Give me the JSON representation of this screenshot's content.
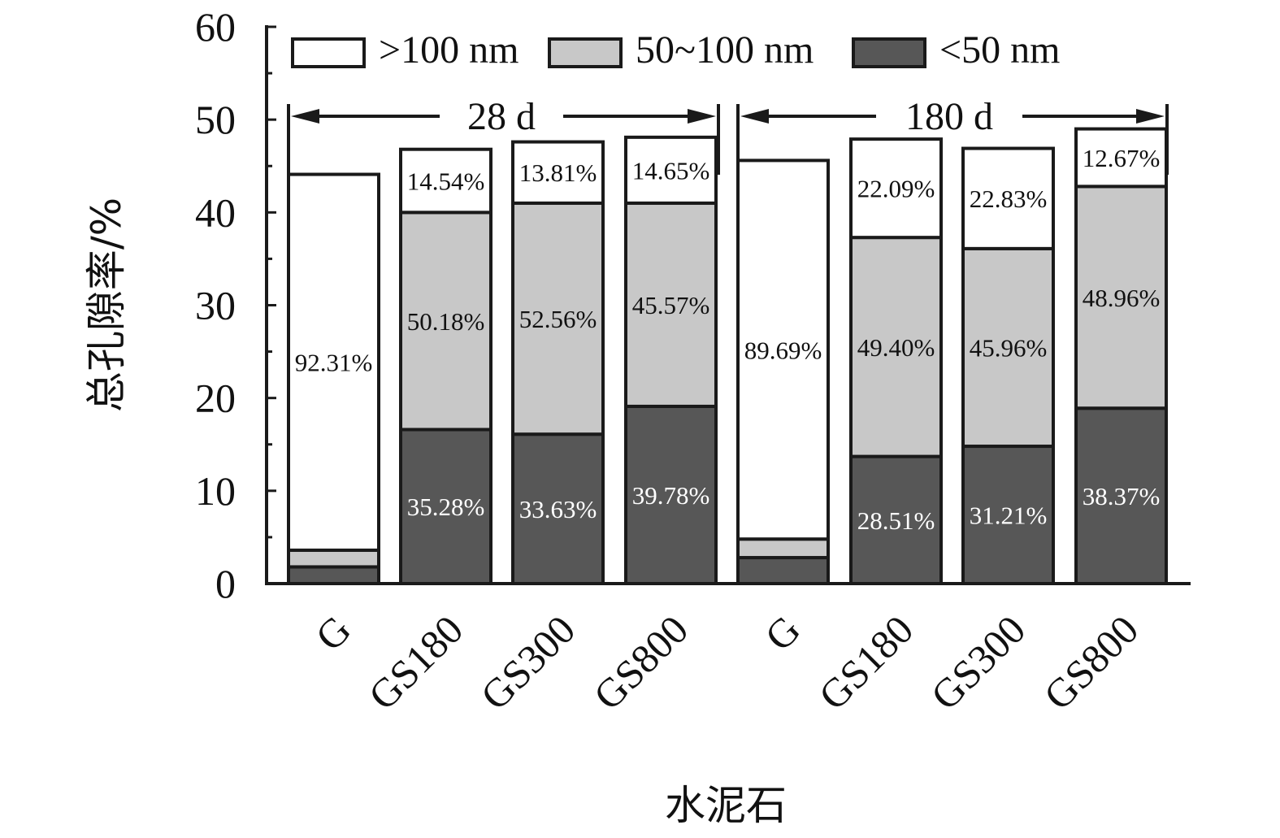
{
  "chart_data": {
    "type": "bar",
    "stacked": true,
    "title": "",
    "xlabel": "水泥石",
    "ylabel": "总孔隙率/%",
    "ylim": [
      0,
      60
    ],
    "yticks": [
      "0",
      "10",
      "20",
      "30",
      "40",
      "50",
      "60"
    ],
    "legend_position": "top",
    "groups": [
      {
        "label": "28 d",
        "categories": [
          "G",
          "GS180",
          "GS300",
          "GS800"
        ]
      },
      {
        "label": "180 d",
        "categories": [
          "G",
          "GS180",
          "GS300",
          "GS800"
        ]
      }
    ],
    "categories": [
      "G",
      "GS180",
      "GS300",
      "GS800",
      "G",
      "GS180",
      "GS300",
      "GS800"
    ],
    "series": [
      {
        "name": "<50 nm",
        "color": "#575757",
        "label_color": "#ffffff",
        "values": [
          1.8,
          16.6,
          16.1,
          19.1,
          2.8,
          13.7,
          14.8,
          18.9
        ],
        "labels": [
          "",
          "35.28%",
          "33.63%",
          "39.78%",
          "",
          "28.51%",
          "31.21%",
          "38.37%"
        ]
      },
      {
        "name": "50~100 nm",
        "color": "#c8c8c8",
        "label_color": "#111111",
        "values": [
          1.8,
          23.4,
          24.9,
          21.9,
          2.0,
          23.6,
          21.3,
          23.9
        ],
        "labels": [
          "",
          "50.18%",
          "52.56%",
          "45.57%",
          "",
          "49.40%",
          "45.96%",
          "48.96%"
        ]
      },
      {
        "name": ">100 nm",
        "color": "#ffffff",
        "label_color": "#111111",
        "values": [
          40.5,
          6.8,
          6.6,
          7.1,
          40.8,
          10.6,
          10.8,
          6.2
        ],
        "labels": [
          "92.31%",
          "14.54%",
          "13.81%",
          "14.65%",
          "89.69%",
          "22.09%",
          "22.83%",
          "12.67%"
        ]
      }
    ]
  }
}
